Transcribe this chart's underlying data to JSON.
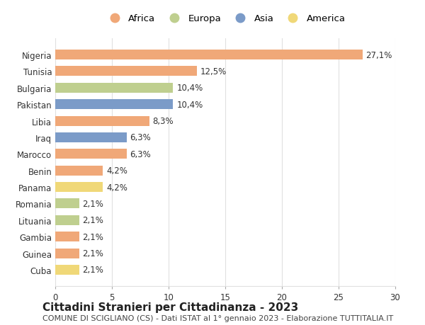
{
  "countries": [
    "Nigeria",
    "Tunisia",
    "Bulgaria",
    "Pakistan",
    "Libia",
    "Iraq",
    "Marocco",
    "Benin",
    "Panama",
    "Romania",
    "Lituania",
    "Gambia",
    "Guinea",
    "Cuba"
  ],
  "values": [
    27.1,
    12.5,
    10.4,
    10.4,
    8.3,
    6.3,
    6.3,
    4.2,
    4.2,
    2.1,
    2.1,
    2.1,
    2.1,
    2.1
  ],
  "labels": [
    "27,1%",
    "12,5%",
    "10,4%",
    "10,4%",
    "8,3%",
    "6,3%",
    "6,3%",
    "4,2%",
    "4,2%",
    "2,1%",
    "2,1%",
    "2,1%",
    "2,1%",
    "2,1%"
  ],
  "continents": [
    "Africa",
    "Africa",
    "Europa",
    "Asia",
    "Africa",
    "Asia",
    "Africa",
    "Africa",
    "America",
    "Europa",
    "Europa",
    "Africa",
    "Africa",
    "America"
  ],
  "continent_colors": {
    "Africa": "#F0A878",
    "Europa": "#BFCF8F",
    "Asia": "#7B9BC8",
    "America": "#F0D878"
  },
  "legend_order": [
    "Africa",
    "Europa",
    "Asia",
    "America"
  ],
  "title1": "Cittadini Stranieri per Cittadinanza - 2023",
  "title2": "COMUNE DI SCIGLIANO (CS) - Dati ISTAT al 1° gennaio 2023 - Elaborazione TUTTITALIA.IT",
  "xlim": [
    0,
    30
  ],
  "xticks": [
    0,
    5,
    10,
    15,
    20,
    25,
    30
  ],
  "bar_height": 0.6,
  "bg_color": "#ffffff",
  "grid_color": "#e0e0e0",
  "label_fontsize": 8.5,
  "tick_fontsize": 8.5,
  "title1_fontsize": 11,
  "title2_fontsize": 8
}
